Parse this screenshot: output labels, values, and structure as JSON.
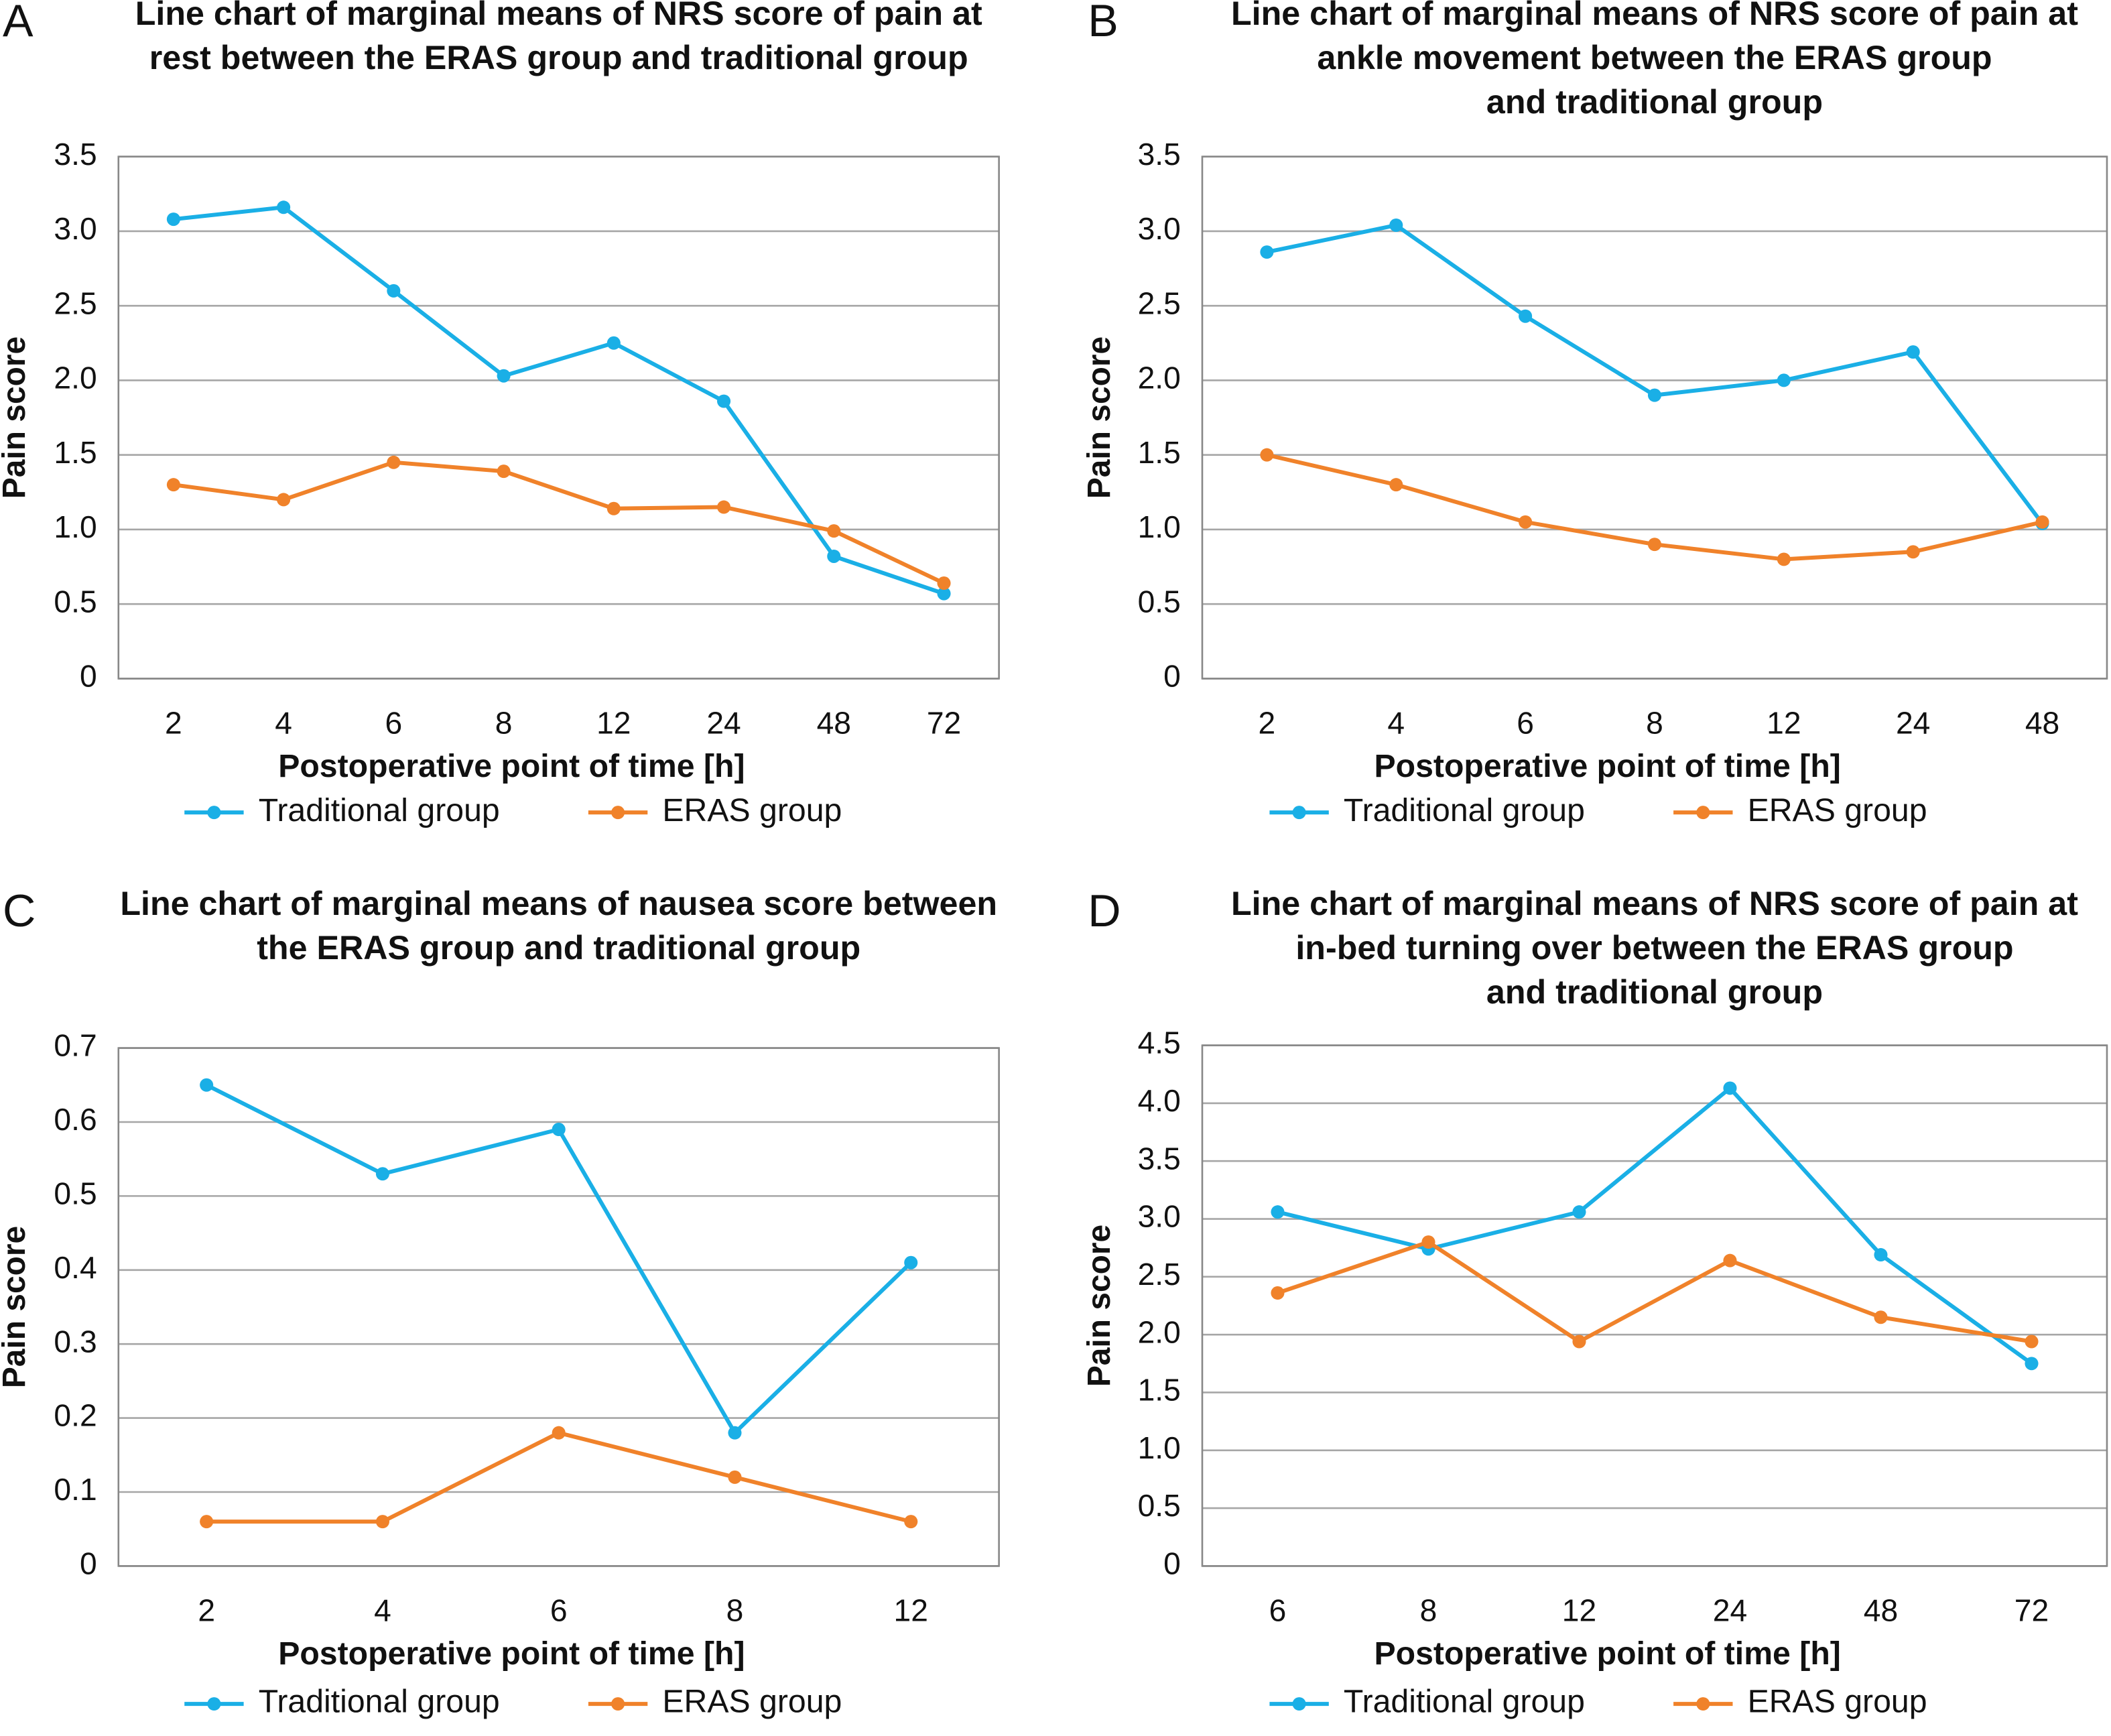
{
  "chart_data": [
    {
      "type": "line",
      "panel": "A",
      "title": [
        "Line chart of marginal means of NRS score of pain at",
        "rest between the ERAS group and traditional group"
      ],
      "x_label": "Postoperative point of time [h]",
      "y_label": "Pain score",
      "categories": [
        "2",
        "4",
        "6",
        "8",
        "12",
        "24",
        "48",
        "72"
      ],
      "series": [
        {
          "name": "Traditional group",
          "color": "#1aafe6",
          "values": [
            3.08,
            3.16,
            2.6,
            2.03,
            2.25,
            1.86,
            0.82,
            0.57
          ]
        },
        {
          "name": "ERAS group",
          "color": "#f0822a",
          "values": [
            1.3,
            1.2,
            1.45,
            1.39,
            1.14,
            1.15,
            0.99,
            0.64
          ]
        }
      ],
      "ylim": [
        0,
        3.5
      ],
      "yticks": [
        0,
        0.5,
        {
          "value": 1,
          "label": "1.0"
        },
        1.5,
        {
          "value": 2,
          "label": "2.0"
        },
        2.5,
        {
          "value": 3,
          "label": "3.0"
        },
        3.5
      ],
      "grid": true
    },
    {
      "type": "line",
      "panel": "B",
      "title": [
        "Line chart of marginal means of NRS score of pain at",
        "ankle movement between the ERAS group",
        "and traditional group"
      ],
      "x_label": "Postoperative point of time [h]",
      "y_label": "Pain score",
      "categories": [
        "2",
        "4",
        "6",
        "8",
        "12",
        "24",
        "48"
      ],
      "series": [
        {
          "name": "Traditional group",
          "color": "#1aafe6",
          "values": [
            2.86,
            3.04,
            2.43,
            1.9,
            2.0,
            2.19,
            1.04
          ]
        },
        {
          "name": "ERAS group",
          "color": "#f0822a",
          "values": [
            1.5,
            1.3,
            1.05,
            0.9,
            0.8,
            0.85,
            1.05
          ]
        }
      ],
      "ylim": [
        0,
        3.5
      ],
      "yticks": [
        0,
        0.5,
        {
          "value": 1,
          "label": "1.0"
        },
        1.5,
        {
          "value": 2,
          "label": "2.0"
        },
        2.5,
        {
          "value": 3,
          "label": "3.0"
        },
        3.5
      ],
      "grid": true
    },
    {
      "type": "line",
      "panel": "C",
      "title": [
        "Line chart of marginal means of nausea score between",
        "the ERAS group and traditional group"
      ],
      "x_label": "Postoperative point of time [h]",
      "y_label": "Pain score",
      "categories": [
        "2",
        "4",
        "6",
        "8",
        "12"
      ],
      "series": [
        {
          "name": "Traditional group",
          "color": "#1aafe6",
          "values": [
            0.65,
            0.53,
            0.59,
            0.18,
            0.41
          ]
        },
        {
          "name": "ERAS group",
          "color": "#f0822a",
          "values": [
            0.06,
            0.06,
            0.18,
            0.12,
            0.06
          ]
        }
      ],
      "ylim": [
        0,
        0.7
      ],
      "yticks": [
        0,
        0.1,
        0.2,
        0.3,
        0.4,
        0.5,
        0.6,
        0.7
      ],
      "grid": true
    },
    {
      "type": "line",
      "panel": "D",
      "title": [
        "Line chart of marginal means of NRS score of pain at",
        "in-bed turning over between the ERAS group",
        "and traditional group"
      ],
      "x_label": "Postoperative point of time [h]",
      "y_label": "Pain score",
      "categories": [
        "6",
        "8",
        "12",
        "24",
        "48",
        "72"
      ],
      "series": [
        {
          "name": "Traditional group",
          "color": "#1aafe6",
          "values": [
            3.06,
            2.74,
            3.06,
            4.13,
            2.69,
            1.75
          ]
        },
        {
          "name": "ERAS group",
          "color": "#f0822a",
          "values": [
            2.36,
            2.8,
            1.94,
            2.64,
            2.15,
            1.94
          ]
        }
      ],
      "ylim": [
        0,
        4.5
      ],
      "yticks": [
        0,
        0.5,
        {
          "value": 1,
          "label": "1.0"
        },
        1.5,
        {
          "value": 2,
          "label": "2.0"
        },
        2.5,
        {
          "value": 3,
          "label": "3.0"
        },
        3.5,
        {
          "value": 4,
          "label": "4.0"
        },
        4.5
      ],
      "grid": true
    }
  ]
}
